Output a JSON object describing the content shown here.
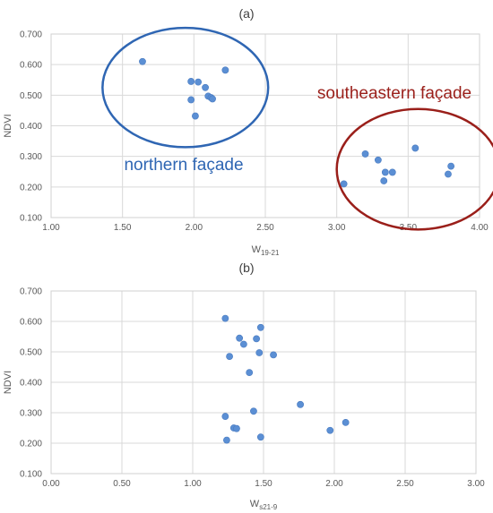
{
  "colors": {
    "point": "#5b8fd4",
    "north_ellipse": "#2f66b3",
    "southeast_ellipse": "#9a1f1a",
    "grid": "#d9d9d9"
  },
  "chart_data": [
    {
      "type": "scatter",
      "panel_label": "(a)",
      "xlabel": {
        "main": "W",
        "sub": "19-21"
      },
      "ylabel": "NDVI",
      "xlim": [
        1.0,
        4.0
      ],
      "ylim": [
        0.1,
        0.7
      ],
      "xticks": [
        1.0,
        1.5,
        2.0,
        2.5,
        3.0,
        3.5,
        4.0
      ],
      "yticks": [
        0.1,
        0.2,
        0.3,
        0.4,
        0.5,
        0.6,
        0.7
      ],
      "x_tick_labels": [
        "1.00",
        "1.50",
        "2.00",
        "2.50",
        "3.00",
        "3.50",
        "4.00"
      ],
      "y_tick_labels": [
        "0.100",
        "0.200",
        "0.300",
        "0.400",
        "0.500",
        "0.600",
        "0.700"
      ],
      "grid": "vertical and horizontal major gridlines",
      "x": [
        1.64,
        1.98,
        2.03,
        2.08,
        2.1,
        2.12,
        2.13,
        1.98,
        2.01,
        2.22,
        3.05,
        3.2,
        3.29,
        3.33,
        3.34,
        3.39,
        3.55,
        3.78,
        3.8
      ],
      "y": [
        0.61,
        0.545,
        0.543,
        0.525,
        0.497,
        0.492,
        0.488,
        0.485,
        0.432,
        0.582,
        0.21,
        0.308,
        0.288,
        0.22,
        0.248,
        0.248,
        0.327,
        0.242,
        0.268
      ],
      "annotations": [
        {
          "text": "northern façade",
          "shape": "ellipse",
          "color": "#2f66b3",
          "center": [
            1.94,
            0.525
          ],
          "radii": [
            0.58,
            0.195
          ]
        },
        {
          "text": "southeastern façade",
          "shape": "ellipse",
          "color": "#9a1f1a",
          "center": [
            3.57,
            0.258
          ],
          "radii": [
            0.57,
            0.197
          ]
        }
      ]
    },
    {
      "type": "scatter",
      "panel_label": "(b)",
      "xlabel": {
        "main": "W",
        "sub": "s21-9"
      },
      "ylabel": "NDVI",
      "xlim": [
        0.0,
        3.0
      ],
      "ylim": [
        0.1,
        0.7
      ],
      "xticks": [
        0.0,
        0.5,
        1.0,
        1.5,
        2.0,
        2.5,
        3.0
      ],
      "yticks": [
        0.1,
        0.2,
        0.3,
        0.4,
        0.5,
        0.6,
        0.7
      ],
      "x_tick_labels": [
        "0.00",
        "0.50",
        "1.00",
        "1.50",
        "2.00",
        "2.50",
        "3.00"
      ],
      "y_tick_labels": [
        "0.100",
        "0.200",
        "0.300",
        "0.400",
        "0.500",
        "0.600",
        "0.700"
      ],
      "grid": "vertical and horizontal major gridlines",
      "x": [
        1.23,
        1.48,
        1.33,
        1.45,
        1.36,
        1.26,
        1.47,
        1.57,
        1.4,
        1.76,
        1.23,
        1.43,
        1.29,
        1.31,
        1.97,
        2.08,
        1.24,
        1.48
      ],
      "y": [
        0.61,
        0.58,
        0.545,
        0.543,
        0.525,
        0.485,
        0.497,
        0.49,
        0.432,
        0.327,
        0.288,
        0.305,
        0.25,
        0.248,
        0.242,
        0.268,
        0.21,
        0.22
      ]
    }
  ]
}
